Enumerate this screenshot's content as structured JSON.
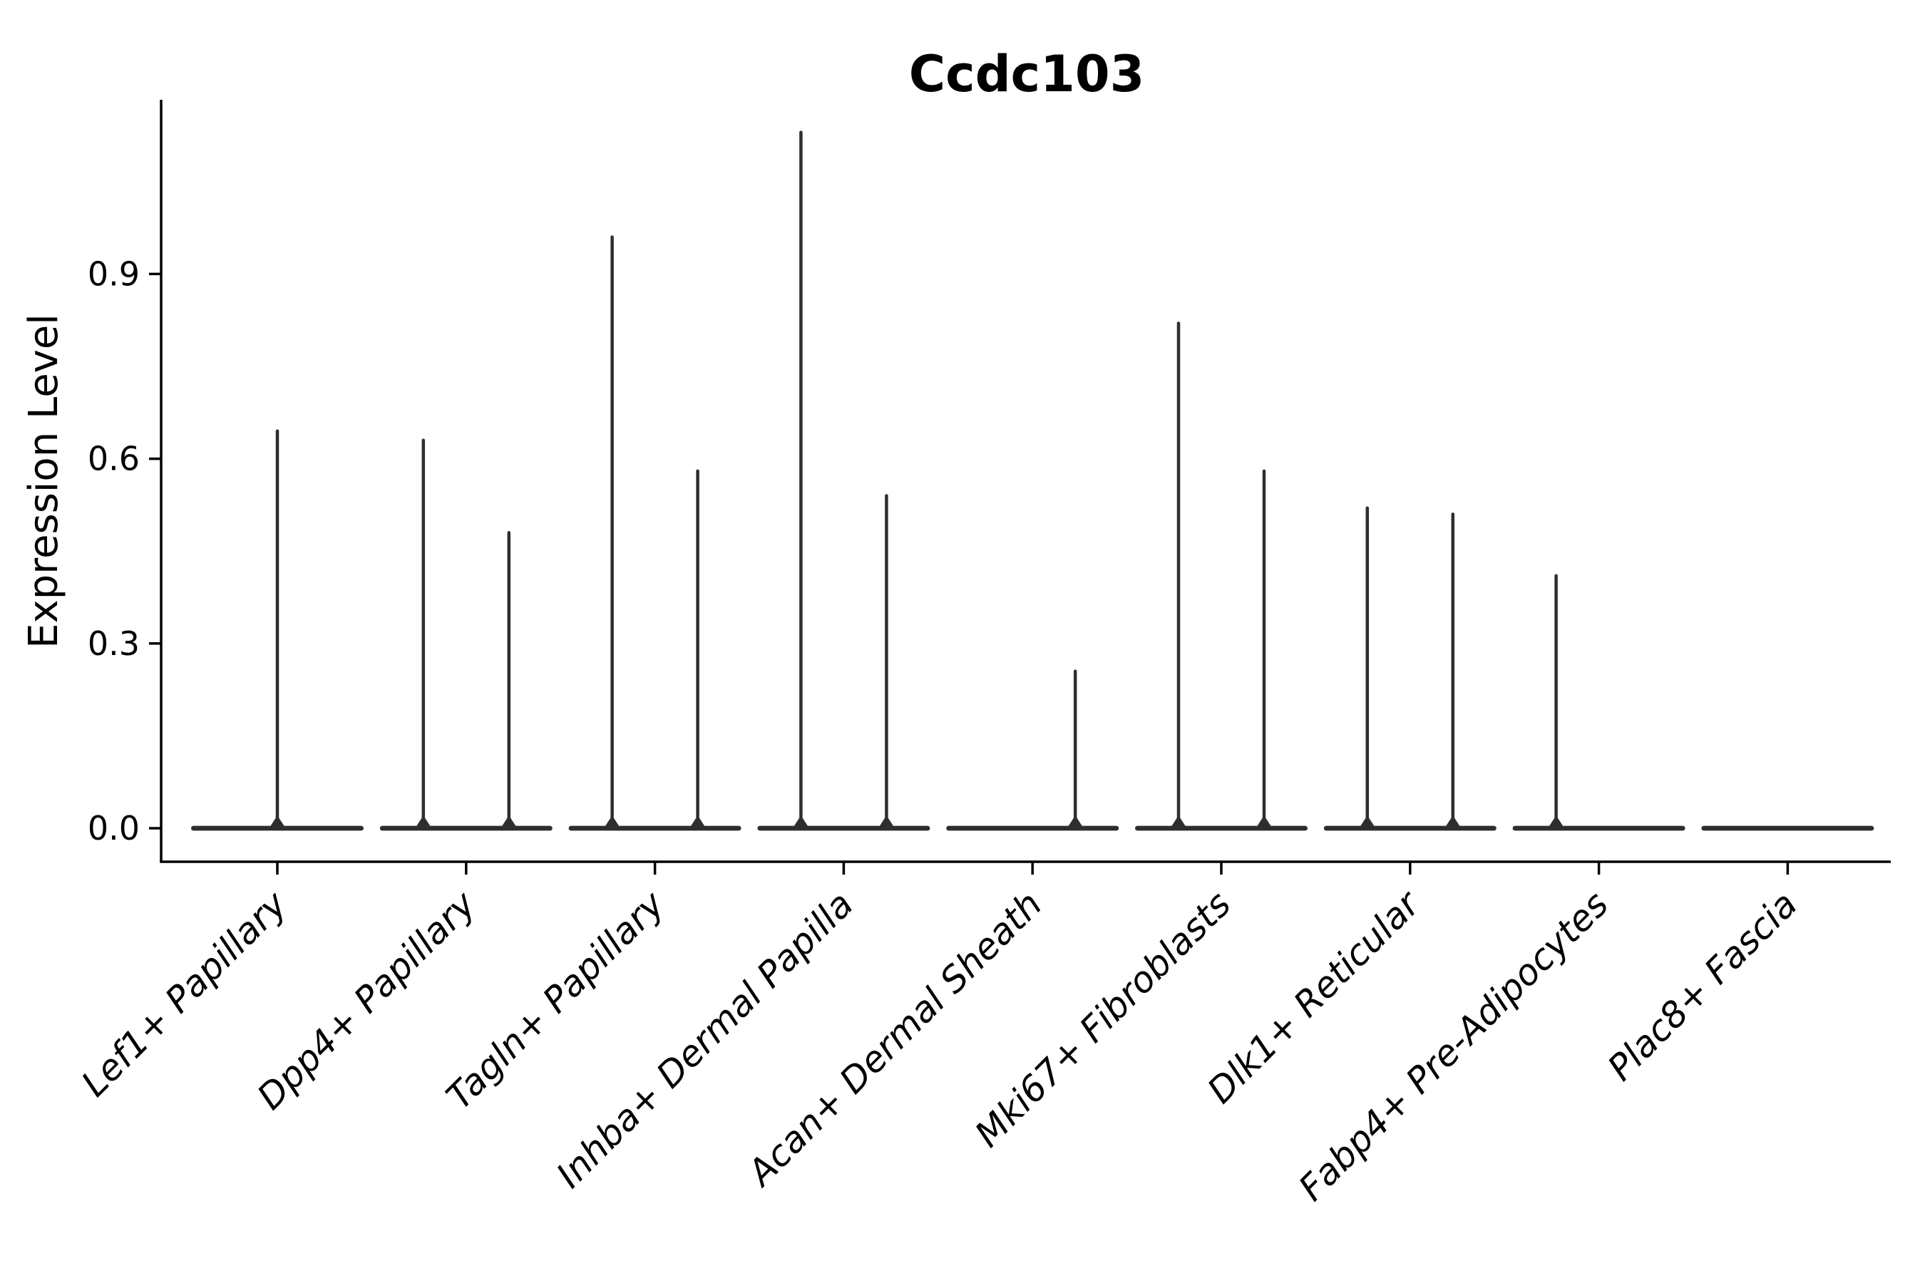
{
  "figure": {
    "title": "Ccdc103",
    "ylabel": "Expression Level"
  },
  "chart_data": {
    "type": "violin",
    "title": "Ccdc103",
    "xlabel": "",
    "ylabel": "Expression Level",
    "yticks": [
      "0.0",
      "0.3",
      "0.6",
      "0.9"
    ],
    "ytick_values": [
      0.0,
      0.3,
      0.6,
      0.9
    ],
    "ylim": [
      -0.06,
      1.18
    ],
    "grid": false,
    "legend": null,
    "categories": [
      "Lef1+ Papillary",
      "Dpp4+ Papillary",
      "Tagln+ Papillary",
      "Inhba+ Dermal Papilla",
      "Acan+ Dermal Sheath",
      "Mki67+ Fibroblasts",
      "Dlk1+ Reticular",
      "Fabp4+ Pre-Adipocytes",
      "Plac8+ Fascia"
    ],
    "violins": [
      {
        "category": "Lef1+ Papillary",
        "baseline": 0.0,
        "spikes": [
          {
            "position": "center",
            "max": 0.645
          }
        ]
      },
      {
        "category": "Dpp4+ Papillary",
        "baseline": 0.0,
        "spikes": [
          {
            "position": "left",
            "max": 0.63
          },
          {
            "position": "right",
            "max": 0.48
          }
        ]
      },
      {
        "category": "Tagln+ Papillary",
        "baseline": 0.0,
        "spikes": [
          {
            "position": "left",
            "max": 0.96
          },
          {
            "position": "right",
            "max": 0.58
          }
        ]
      },
      {
        "category": "Inhba+ Dermal Papilla",
        "baseline": 0.0,
        "spikes": [
          {
            "position": "left",
            "max": 1.13
          },
          {
            "position": "right",
            "max": 0.54
          }
        ]
      },
      {
        "category": "Acan+ Dermal Sheath",
        "baseline": 0.0,
        "spikes": [
          {
            "position": "right",
            "max": 0.255
          }
        ]
      },
      {
        "category": "Mki67+ Fibroblasts",
        "baseline": 0.0,
        "spikes": [
          {
            "position": "left",
            "max": 0.82
          },
          {
            "position": "right",
            "max": 0.58
          }
        ]
      },
      {
        "category": "Dlk1+ Reticular",
        "baseline": 0.0,
        "spikes": [
          {
            "position": "left",
            "max": 0.52
          },
          {
            "position": "right",
            "max": 0.51
          }
        ]
      },
      {
        "category": "Fabp4+ Pre-Adipocytes",
        "baseline": 0.0,
        "spikes": [
          {
            "position": "left",
            "max": 0.41
          }
        ]
      },
      {
        "category": "Plac8+ Fascia",
        "baseline": 0.0,
        "spikes": []
      }
    ],
    "colors": {
      "violin": "#2e2e2e",
      "axis": "#000000",
      "text": "#000000",
      "background": "#ffffff"
    }
  }
}
